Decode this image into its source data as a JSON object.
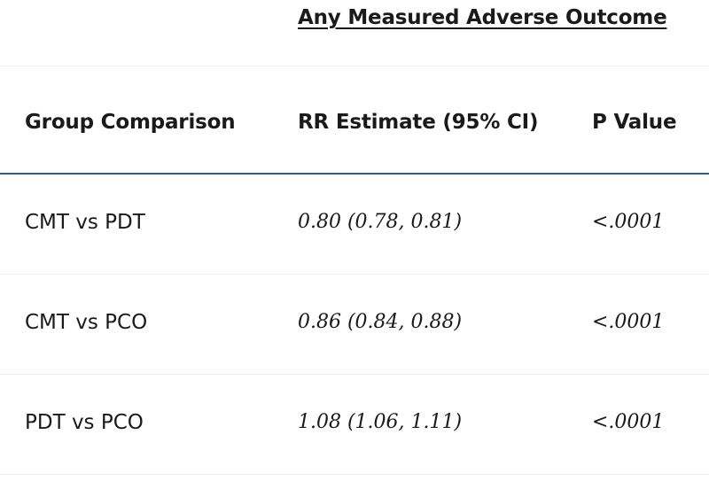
{
  "table": {
    "super_header": "Any Measured Adverse Outcome",
    "columns": [
      "Group Comparison",
      "RR Estimate (95% CI)",
      "P Value"
    ],
    "rows": [
      {
        "comparison": "CMT vs PDT",
        "rr": "0.80 (0.78, 0.81)",
        "p": "<.0001"
      },
      {
        "comparison": "CMT vs PCO",
        "rr": "0.86 (0.84, 0.88)",
        "p": "<.0001"
      },
      {
        "comparison": "PDT vs PCO",
        "rr": "1.08 (1.06, 1.11)",
        "p": "<.0001"
      }
    ]
  }
}
